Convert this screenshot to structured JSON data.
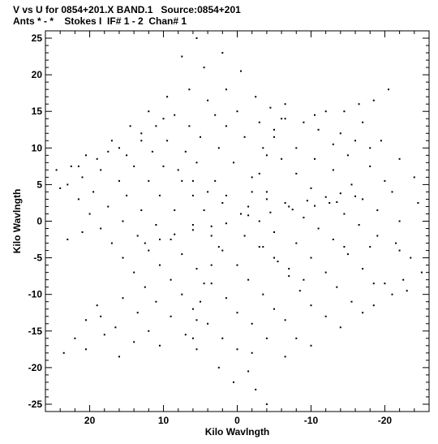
{
  "title_line1": "V vs U for 0854+201.X BAND.1   Source:0854+201",
  "title_line2": "Ants * - *    Stokes I  IF# 1 - 2  Chan# 1",
  "chart_data": {
    "type": "scatter",
    "title": "V vs U for 0854+201.X BAND.1   Source:0854+201",
    "subtitle": "Ants * - *    Stokes I  IF# 1 - 2  Chan# 1",
    "xlabel": "Kilo Wavlngth",
    "ylabel": "Kilo Wavlngth",
    "xlim": [
      26,
      -26
    ],
    "ylim": [
      -26,
      26
    ],
    "x_inverted": true,
    "x_ticks": [
      20,
      10,
      0,
      -10,
      -20
    ],
    "x_tick_labels": [
      "20",
      "10",
      "0",
      "-10",
      "-20"
    ],
    "y_ticks": [
      25,
      20,
      15,
      10,
      5,
      0,
      -5,
      -10,
      -15,
      -20,
      -25
    ],
    "y_tick_labels": [
      "25",
      "20",
      "15",
      "10",
      "5",
      "0",
      "-5",
      "-10",
      "-15",
      "-20",
      "-25"
    ],
    "grid": false,
    "point_color": "#000000",
    "pattern": "six-armed star uv-coverage, point-symmetric about origin",
    "points": [
      [
        5.5,
        25.0
      ],
      [
        2.0,
        23.0
      ],
      [
        7.5,
        22.5
      ],
      [
        4.5,
        21.0
      ],
      [
        -0.5,
        20.5
      ],
      [
        6.5,
        18.0
      ],
      [
        1.5,
        18.0
      ],
      [
        -2.5,
        17.0
      ],
      [
        9.5,
        17.0
      ],
      [
        4.0,
        16.5
      ],
      [
        -4.5,
        15.5
      ],
      [
        12.0,
        15.0
      ],
      [
        8.5,
        14.5
      ],
      [
        3.0,
        14.5
      ],
      [
        0.0,
        15.0
      ],
      [
        -6.5,
        14.0
      ],
      [
        14.5,
        13.0
      ],
      [
        11.0,
        13.0
      ],
      [
        6.5,
        13.0
      ],
      [
        1.5,
        13.0
      ],
      [
        -3.0,
        13.5
      ],
      [
        -9.0,
        13.5
      ],
      [
        -12.0,
        15.0
      ],
      [
        -14.5,
        15.0
      ],
      [
        -16.5,
        16.0
      ],
      [
        -18.5,
        16.5
      ],
      [
        -20.5,
        18.0
      ],
      [
        17.0,
        11.0
      ],
      [
        13.0,
        11.0
      ],
      [
        9.5,
        11.0
      ],
      [
        5.0,
        11.5
      ],
      [
        -1.0,
        11.5
      ],
      [
        -5.0,
        12.5
      ],
      [
        -11.0,
        12.5
      ],
      [
        -17.0,
        13.5
      ],
      [
        20.5,
        9.0
      ],
      [
        17.5,
        9.5
      ],
      [
        15.0,
        9.0
      ],
      [
        11.5,
        9.5
      ],
      [
        7.0,
        9.5
      ],
      [
        2.5,
        10.0
      ],
      [
        -3.5,
        10.0
      ],
      [
        -8.0,
        10.0
      ],
      [
        -13.0,
        10.5
      ],
      [
        -16.0,
        11.0
      ],
      [
        -19.5,
        11.0
      ],
      [
        22.5,
        7.5
      ],
      [
        18.5,
        7.0
      ],
      [
        14.0,
        7.5
      ],
      [
        10.0,
        7.5
      ],
      [
        5.5,
        8.0
      ],
      [
        0.5,
        8.0
      ],
      [
        -6.0,
        8.5
      ],
      [
        -10.5,
        8.5
      ],
      [
        -15.0,
        9.0
      ],
      [
        24.5,
        7.0
      ],
      [
        21.0,
        6.0
      ],
      [
        16.0,
        5.5
      ],
      [
        12.0,
        5.5
      ],
      [
        7.5,
        5.5
      ],
      [
        3.0,
        5.5
      ],
      [
        -2.0,
        6.0
      ],
      [
        -8.0,
        6.5
      ],
      [
        -13.0,
        7.0
      ],
      [
        -18.0,
        7.5
      ],
      [
        23.0,
        5.0
      ],
      [
        19.5,
        4.0
      ],
      [
        15.0,
        3.5
      ],
      [
        10.5,
        3.5
      ],
      [
        6.0,
        3.5
      ],
      [
        1.5,
        3.5
      ],
      [
        -4.0,
        4.0
      ],
      [
        -10.0,
        4.5
      ],
      [
        -15.5,
        5.0
      ],
      [
        -20.0,
        5.5
      ],
      [
        21.5,
        3.0
      ],
      [
        17.5,
        2.0
      ],
      [
        13.0,
        1.5
      ],
      [
        8.5,
        1.5
      ],
      [
        4.5,
        1.5
      ],
      [
        -1.5,
        2.0
      ],
      [
        -7.0,
        2.0
      ],
      [
        -12.5,
        2.5
      ],
      [
        -17.0,
        3.0
      ],
      [
        -21.0,
        4.0
      ],
      [
        20.0,
        1.0
      ],
      [
        15.5,
        0.0
      ],
      [
        11.0,
        -0.5
      ],
      [
        6.0,
        -0.5
      ],
      [
        -3.0,
        0.0
      ],
      [
        -9.0,
        0.5
      ],
      [
        -14.5,
        1.0
      ],
      [
        -19.0,
        1.5
      ],
      [
        -24.5,
        2.5
      ],
      [
        18.5,
        -1.0
      ],
      [
        13.5,
        -2.0
      ],
      [
        9.0,
        -2.5
      ],
      [
        3.5,
        -2.0
      ],
      [
        -5.0,
        -1.5
      ],
      [
        -11.0,
        -1.0
      ],
      [
        -16.5,
        -0.5
      ],
      [
        -22.0,
        0.0
      ],
      [
        -4.0,
        3.0
      ],
      [
        -6.5,
        2.5
      ],
      [
        -9.5,
        2.8
      ],
      [
        -12.0,
        3.3
      ],
      [
        -14.0,
        3.8
      ],
      [
        -1.5,
        0.8
      ],
      [
        -4.5,
        1.2
      ],
      [
        -7.5,
        1.6
      ],
      [
        -10.5,
        2.1
      ],
      [
        -13.5,
        2.6
      ],
      [
        -16.0,
        3.4
      ],
      [
        6.0,
        -1.2
      ],
      [
        8.5,
        -1.8
      ],
      [
        10.5,
        -2.5
      ],
      [
        12.5,
        -3.0
      ],
      [
        3.5,
        -0.7
      ],
      [
        1.5,
        -0.3
      ],
      [
        -0.5,
        1.0
      ],
      [
        2.0,
        2.5
      ],
      [
        4.0,
        4.0
      ],
      [
        6.0,
        5.5
      ],
      [
        8.0,
        7.0
      ],
      [
        -1.0,
        -2.0
      ],
      [
        -3.0,
        -3.5
      ],
      [
        -5.0,
        -5.0
      ],
      [
        -7.0,
        -6.5
      ],
      [
        -9.0,
        -8.0
      ],
      [
        -2.0,
        4.0
      ],
      [
        -3.0,
        6.5
      ],
      [
        -4.0,
        9.0
      ],
      [
        -5.0,
        11.5
      ],
      [
        -6.0,
        14.0
      ],
      [
        -6.5,
        16.0
      ],
      [
        2.5,
        -3.5
      ],
      [
        3.5,
        -6.0
      ],
      [
        4.5,
        -8.5
      ],
      [
        5.0,
        -11.0
      ],
      [
        5.5,
        -13.5
      ],
      [
        6.0,
        -16.0
      ],
      [
        17.0,
        -3.0
      ],
      [
        12.0,
        -4.0
      ],
      [
        7.5,
        -4.5
      ],
      [
        2.0,
        -4.0
      ],
      [
        -3.5,
        -3.5
      ],
      [
        -8.0,
        -3.0
      ],
      [
        -13.0,
        -2.5
      ],
      [
        -19.0,
        -2.0
      ],
      [
        15.5,
        -5.0
      ],
      [
        10.5,
        -6.0
      ],
      [
        5.5,
        -6.5
      ],
      [
        0.0,
        -6.0
      ],
      [
        -5.5,
        -5.5
      ],
      [
        -10.0,
        -5.0
      ],
      [
        -15.0,
        -4.5
      ],
      [
        -22.0,
        -4.0
      ],
      [
        14.0,
        -7.0
      ],
      [
        9.0,
        -8.0
      ],
      [
        3.5,
        -8.5
      ],
      [
        -1.5,
        -8.0
      ],
      [
        -7.0,
        -7.5
      ],
      [
        -12.0,
        -7.0
      ],
      [
        -17.0,
        -6.5
      ],
      [
        -23.5,
        -5.0
      ],
      [
        12.5,
        -9.0
      ],
      [
        7.5,
        -10.0
      ],
      [
        1.5,
        -10.5
      ],
      [
        -3.5,
        -10.0
      ],
      [
        -8.5,
        -9.5
      ],
      [
        -13.5,
        -9.0
      ],
      [
        -18.5,
        -8.5
      ],
      [
        -22.5,
        -8.0
      ],
      [
        -25.0,
        -7.0
      ],
      [
        15.5,
        -10.5
      ],
      [
        11.0,
        -11.0
      ],
      [
        6.0,
        -12.0
      ],
      [
        0.0,
        -12.5
      ],
      [
        -5.0,
        -12.0
      ],
      [
        -10.0,
        -11.5
      ],
      [
        -15.5,
        -11.0
      ],
      [
        -20.0,
        -8.5
      ],
      [
        19.0,
        -11.5
      ],
      [
        13.5,
        -12.5
      ],
      [
        9.0,
        -13.0
      ],
      [
        4.0,
        -14.0
      ],
      [
        -2.0,
        -14.0
      ],
      [
        -6.5,
        -13.5
      ],
      [
        -12.0,
        -13.0
      ],
      [
        -17.0,
        -12.5
      ],
      [
        20.5,
        -13.5
      ],
      [
        16.5,
        -14.5
      ],
      [
        12.0,
        -15.0
      ],
      [
        7.0,
        -15.5
      ],
      [
        2.0,
        -16.0
      ],
      [
        -4.0,
        -16.0
      ],
      [
        -8.0,
        -16.0
      ],
      [
        18.0,
        -15.5
      ],
      [
        14.0,
        -16.5
      ],
      [
        10.5,
        -17.0
      ],
      [
        5.5,
        -17.5
      ],
      [
        0.0,
        -17.5
      ],
      [
        -2.0,
        -18.0
      ],
      [
        20.5,
        -17.5
      ],
      [
        16.0,
        -18.5
      ],
      [
        -1.5,
        -20.5
      ],
      [
        2.5,
        -20.0
      ],
      [
        -2.5,
        -23.0
      ],
      [
        0.5,
        -22.0
      ],
      [
        -4.0,
        -25.0
      ],
      [
        18.5,
        -13.0
      ],
      [
        22.0,
        -16.0
      ],
      [
        23.5,
        -18.0
      ],
      [
        -6.5,
        -18.5
      ],
      [
        -10.0,
        -17.0
      ],
      [
        -14.0,
        -14.5
      ],
      [
        -18.5,
        -11.5
      ],
      [
        -21.0,
        -10.0
      ],
      [
        -23.0,
        -9.5
      ],
      [
        10.0,
        14.0
      ],
      [
        13.0,
        12.0
      ],
      [
        16.0,
        10.0
      ],
      [
        19.0,
        8.5
      ],
      [
        -10.5,
        14.5
      ],
      [
        -14.0,
        12.0
      ],
      [
        -18.0,
        10.0
      ],
      [
        -22.0,
        8.5
      ],
      [
        21.5,
        7.5
      ],
      [
        -24.0,
        6.0
      ],
      [
        24.0,
        4.5
      ],
      [
        -21.5,
        -3.0
      ],
      [
        -18.0,
        -3.5
      ],
      [
        -14.5,
        -3.5
      ],
      [
        21.0,
        -1.5
      ],
      [
        23.0,
        -2.5
      ]
    ]
  }
}
